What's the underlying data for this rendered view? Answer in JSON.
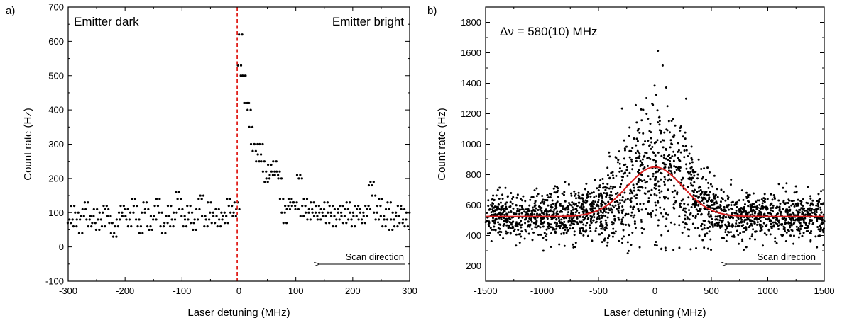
{
  "chart_data": [
    {
      "type": "scatter",
      "panel_label": "a)",
      "xlabel": "Laser detuning (MHz)",
      "ylabel": "Count rate (Hz)",
      "xlim": [
        -300,
        300
      ],
      "ylim": [
        -100,
        700
      ],
      "x_ticks": [
        -300,
        -200,
        -100,
        0,
        100,
        200,
        300
      ],
      "y_ticks": [
        -100,
        0,
        100,
        200,
        300,
        400,
        500,
        600,
        700
      ],
      "annotations": {
        "left": "Emitter dark",
        "right": "Emitter bright",
        "scan": "Scan direction"
      },
      "threshold_x": -3,
      "threshold_color": "#e0201b",
      "point_color": "#000000",
      "grid": false,
      "legend": "none",
      "points": [
        [
          -298,
          70
        ],
        [
          -295,
          80
        ],
        [
          -292,
          120
        ],
        [
          -288,
          60
        ],
        [
          -285,
          100
        ],
        [
          -282,
          80
        ],
        [
          -278,
          40
        ],
        [
          -275,
          90
        ],
        [
          -272,
          110
        ],
        [
          -268,
          130
        ],
        [
          -265,
          80
        ],
        [
          -262,
          60
        ],
        [
          -258,
          90
        ],
        [
          -255,
          70
        ],
        [
          -252,
          110
        ],
        [
          -248,
          50
        ],
        [
          -245,
          80
        ],
        [
          -242,
          100
        ],
        [
          -238,
          60
        ],
        [
          -235,
          120
        ],
        [
          -232,
          110
        ],
        [
          -228,
          90
        ],
        [
          -225,
          70
        ],
        [
          -222,
          40
        ],
        [
          -218,
          30
        ],
        [
          -215,
          60
        ],
        [
          -212,
          80
        ],
        [
          -208,
          100
        ],
        [
          -205,
          120
        ],
        [
          -202,
          90
        ],
        [
          -198,
          110
        ],
        [
          -195,
          80
        ],
        [
          -192,
          60
        ],
        [
          -188,
          100
        ],
        [
          -185,
          140
        ],
        [
          -182,
          120
        ],
        [
          -178,
          80
        ],
        [
          -175,
          60
        ],
        [
          -172,
          40
        ],
        [
          -168,
          100
        ],
        [
          -165,
          130
        ],
        [
          -162,
          110
        ],
        [
          -158,
          60
        ],
        [
          -155,
          50
        ],
        [
          -152,
          90
        ],
        [
          -148,
          80
        ],
        [
          -145,
          120
        ],
        [
          -142,
          140
        ],
        [
          -138,
          100
        ],
        [
          -135,
          60
        ],
        [
          -132,
          40
        ],
        [
          -128,
          70
        ],
        [
          -125,
          90
        ],
        [
          -122,
          120
        ],
        [
          -118,
          60
        ],
        [
          -115,
          80
        ],
        [
          -112,
          100
        ],
        [
          -108,
          160
        ],
        [
          -105,
          140
        ],
        [
          -102,
          110
        ],
        [
          -98,
          90
        ],
        [
          -95,
          60
        ],
        [
          -92,
          80
        ],
        [
          -88,
          120
        ],
        [
          -85,
          100
        ],
        [
          -82,
          70
        ],
        [
          -78,
          50
        ],
        [
          -75,
          80
        ],
        [
          -72,
          110
        ],
        [
          -68,
          140
        ],
        [
          -65,
          150
        ],
        [
          -62,
          90
        ],
        [
          -58,
          60
        ],
        [
          -55,
          80
        ],
        [
          -52,
          130
        ],
        [
          -48,
          100
        ],
        [
          -45,
          70
        ],
        [
          -42,
          90
        ],
        [
          -38,
          110
        ],
        [
          -35,
          60
        ],
        [
          -32,
          80
        ],
        [
          -28,
          100
        ],
        [
          -25,
          90
        ],
        [
          -22,
          70
        ],
        [
          -18,
          140
        ],
        [
          -15,
          120
        ],
        [
          -12,
          100
        ],
        [
          -8,
          90
        ],
        [
          -5,
          130
        ],
        [
          -2,
          110
        ],
        [
          1,
          530
        ],
        [
          3,
          620
        ],
        [
          6,
          500
        ],
        [
          9,
          500
        ],
        [
          12,
          420
        ],
        [
          15,
          420
        ],
        [
          18,
          400
        ],
        [
          21,
          350
        ],
        [
          24,
          300
        ],
        [
          27,
          280
        ],
        [
          30,
          300
        ],
        [
          33,
          250
        ],
        [
          36,
          270
        ],
        [
          39,
          300
        ],
        [
          42,
          250
        ],
        [
          45,
          220
        ],
        [
          48,
          190
        ],
        [
          51,
          200
        ],
        [
          54,
          240
        ],
        [
          57,
          210
        ],
        [
          60,
          220
        ],
        [
          63,
          250
        ],
        [
          66,
          210
        ],
        [
          69,
          220
        ],
        [
          72,
          200
        ],
        [
          75,
          140
        ],
        [
          78,
          100
        ],
        [
          81,
          70
        ],
        [
          84,
          120
        ],
        [
          87,
          110
        ],
        [
          90,
          140
        ],
        [
          93,
          130
        ],
        [
          96,
          120
        ],
        [
          99,
          130
        ],
        [
          102,
          110
        ],
        [
          105,
          210
        ],
        [
          108,
          200
        ],
        [
          111,
          90
        ],
        [
          114,
          120
        ],
        [
          117,
          140
        ],
        [
          120,
          100
        ],
        [
          123,
          80
        ],
        [
          126,
          110
        ],
        [
          129,
          130
        ],
        [
          132,
          100
        ],
        [
          135,
          90
        ],
        [
          138,
          120
        ],
        [
          141,
          80
        ],
        [
          144,
          100
        ],
        [
          147,
          110
        ],
        [
          150,
          90
        ],
        [
          153,
          130
        ],
        [
          156,
          70
        ],
        [
          159,
          100
        ],
        [
          162,
          120
        ],
        [
          165,
          90
        ],
        [
          168,
          60
        ],
        [
          171,
          110
        ],
        [
          174,
          80
        ],
        [
          177,
          100
        ],
        [
          180,
          120
        ],
        [
          183,
          90
        ],
        [
          186,
          70
        ],
        [
          189,
          110
        ],
        [
          192,
          130
        ],
        [
          195,
          80
        ],
        [
          198,
          100
        ],
        [
          201,
          60
        ],
        [
          204,
          90
        ],
        [
          207,
          120
        ],
        [
          210,
          110
        ],
        [
          213,
          80
        ],
        [
          216,
          100
        ],
        [
          219,
          70
        ],
        [
          222,
          90
        ],
        [
          225,
          120
        ],
        [
          228,
          110
        ],
        [
          231,
          180
        ],
        [
          234,
          190
        ],
        [
          237,
          150
        ],
        [
          240,
          100
        ],
        [
          243,
          80
        ],
        [
          246,
          120
        ],
        [
          249,
          140
        ],
        [
          252,
          90
        ],
        [
          255,
          60
        ],
        [
          258,
          80
        ],
        [
          261,
          110
        ],
        [
          264,
          130
        ],
        [
          267,
          50
        ],
        [
          270,
          80
        ],
        [
          273,
          100
        ],
        [
          276,
          60
        ],
        [
          279,
          90
        ],
        [
          282,
          120
        ],
        [
          285,
          70
        ],
        [
          288,
          110
        ],
        [
          291,
          80
        ],
        [
          294,
          60
        ],
        [
          297,
          100
        ]
      ]
    },
    {
      "type": "scatter",
      "panel_label": "b)",
      "xlabel": "Laser detuning (MHz)",
      "ylabel": "Count rate (Hz)",
      "xlim": [
        -1500,
        1500
      ],
      "ylim": [
        100,
        1900
      ],
      "x_ticks": [
        -1500,
        -1000,
        -500,
        0,
        500,
        1000,
        1500
      ],
      "y_ticks": [
        200,
        400,
        600,
        800,
        1000,
        1200,
        1400,
        1600,
        1800
      ],
      "annotations": {
        "linewidth": "Δν = 580(10) MHz",
        "scan": "Scan direction"
      },
      "fit": {
        "type": "gaussian",
        "baseline": 525,
        "amplitude": 325,
        "center": 0,
        "fwhm": 580,
        "color": "#d81e1e"
      },
      "scatter_model": {
        "n_points": 2200,
        "baseline_noise": 75,
        "peak_noise_factor": 0.55
      },
      "point_color": "#000000",
      "grid": false,
      "legend": "none"
    }
  ]
}
